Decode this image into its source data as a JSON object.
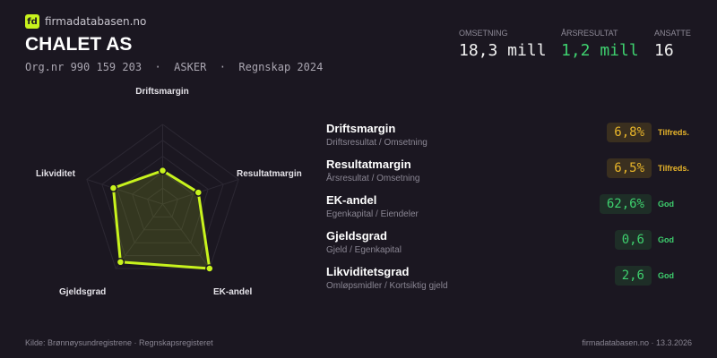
{
  "brand": {
    "logo_text": "fd",
    "site": "firmadatabasen.no"
  },
  "company": {
    "name": "CHALET AS",
    "meta": "Org.nr 990 159 203  ·  ASKER  ·  Regnskap 2024"
  },
  "stats": [
    {
      "label": "OMSETNING",
      "value": "18,3 mill",
      "color": "#f2f2f2"
    },
    {
      "label": "ÅRSRESULTAT",
      "value": "1,2 mill",
      "color": "#3ecf6e"
    },
    {
      "label": "ANSATTE",
      "value": "16",
      "color": "#f2f2f2"
    }
  ],
  "chart_data": {
    "type": "radar",
    "axes": [
      "Driftsmargin",
      "Resultatmargin",
      "EK-andel",
      "Gjeldsgrad",
      "Likviditet"
    ],
    "values": [
      0.42,
      0.47,
      1.0,
      0.9,
      0.65
    ],
    "range": [
      0,
      1
    ],
    "grid_levels": 5,
    "color": "#c8f31d"
  },
  "metrics": [
    {
      "title": "Driftsmargin",
      "sub": "Driftsresultat / Omsetning",
      "value": "6,8%",
      "status": "Tilfreds.",
      "color": "#e8b52a",
      "bg": "#3a2f1f"
    },
    {
      "title": "Resultatmargin",
      "sub": "Årsresultat / Omsetning",
      "value": "6,5%",
      "status": "Tilfreds.",
      "color": "#e8b52a",
      "bg": "#3a2f1f"
    },
    {
      "title": "EK-andel",
      "sub": "Egenkapital / Eiendeler",
      "value": "62,6%",
      "status": "God",
      "color": "#3ecf6e",
      "bg": "#1e2e27"
    },
    {
      "title": "Gjeldsgrad",
      "sub": "Gjeld / Egenkapital",
      "value": "0,6",
      "status": "God",
      "color": "#3ecf6e",
      "bg": "#1e2e27"
    },
    {
      "title": "Likviditetsgrad",
      "sub": "Omløpsmidler / Kortsiktig gjeld",
      "value": "2,6",
      "status": "God",
      "color": "#3ecf6e",
      "bg": "#1e2e27"
    }
  ],
  "footer": {
    "source": "Kilde: Brønnøysundregistrene · Regnskapsregisteret",
    "right": "firmadatabasen.no · 13.3.2026"
  }
}
